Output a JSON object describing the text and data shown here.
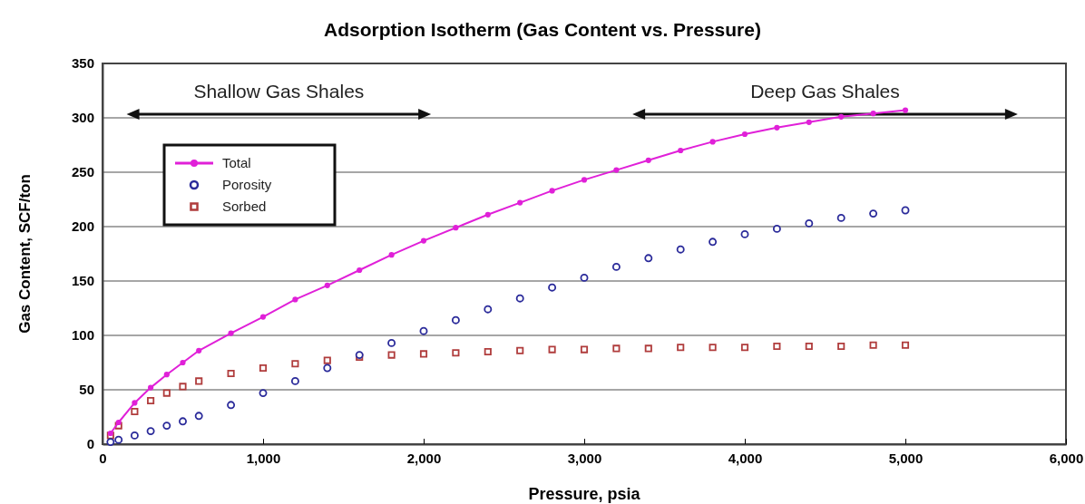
{
  "chart_data": {
    "type": "line",
    "title": "Adsorption Isotherm (Gas Content vs. Pressure)",
    "xlabel": "Pressure, psia",
    "ylabel": "Gas Content, SCF/ton",
    "x": [
      50,
      100,
      200,
      300,
      400,
      500,
      600,
      800,
      1000,
      1200,
      1400,
      1600,
      1800,
      2000,
      2200,
      2400,
      2600,
      2800,
      3000,
      3200,
      3400,
      3600,
      3800,
      4000,
      4200,
      4400,
      4600,
      4800,
      5000
    ],
    "series": [
      {
        "name": "Total",
        "type": "line",
        "marker": "circle",
        "color": "#e020d8",
        "values": [
          10,
          20,
          38,
          52,
          64,
          75,
          86,
          102,
          117,
          133,
          146,
          160,
          174,
          187,
          199,
          211,
          222,
          233,
          243,
          252,
          261,
          270,
          278,
          285,
          291,
          296,
          301,
          304,
          307
        ]
      },
      {
        "name": "Porosity",
        "type": "scatter",
        "marker": "circle",
        "color": "#2a2a9a",
        "values": [
          2,
          4,
          8,
          12,
          17,
          21,
          26,
          36,
          47,
          58,
          70,
          82,
          93,
          104,
          114,
          124,
          134,
          144,
          153,
          163,
          171,
          179,
          186,
          193,
          198,
          203,
          208,
          212,
          215
        ]
      },
      {
        "name": "Sorbed",
        "type": "scatter",
        "marker": "square",
        "color": "#b03c3c",
        "values": [
          8,
          17,
          30,
          40,
          47,
          53,
          58,
          65,
          70,
          74,
          77,
          80,
          82,
          83,
          84,
          85,
          86,
          87,
          87,
          88,
          88,
          89,
          89,
          89,
          90,
          90,
          90,
          91,
          91
        ]
      }
    ],
    "xlim": [
      0,
      6000
    ],
    "xticks": [
      0,
      {
        "value": 1000,
        "label": "1,000"
      },
      {
        "value": 2000,
        "label": "2,000"
      },
      {
        "value": 3000,
        "label": "3,000"
      },
      {
        "value": 4000,
        "label": "4,000"
      },
      {
        "value": 5000,
        "label": "5,000"
      },
      {
        "value": 6000,
        "label": "6,000"
      }
    ],
    "ylim": [
      0,
      350
    ],
    "yticks": [
      0,
      50,
      100,
      150,
      200,
      250,
      300,
      350
    ],
    "grid": "y",
    "legend": "top left",
    "annotations": [
      "Shallow Gas Shales",
      "Deep Gas Shales"
    ]
  }
}
